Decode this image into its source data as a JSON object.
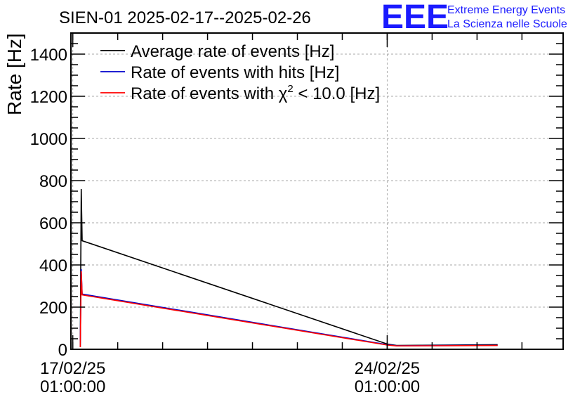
{
  "logo": {
    "mark": "EEE",
    "line1": "Extreme Energy Events",
    "line2": "La Scienza nelle Scuole",
    "color": "#1a1aff"
  },
  "chart_data": {
    "type": "line",
    "title": "SIEN-01 2025-02-17--2025-02-26",
    "xlabel": "",
    "ylabel": "Rate [Hz]",
    "ylim": [
      0,
      1500
    ],
    "yticks": [
      0,
      200,
      400,
      600,
      800,
      1000,
      1200,
      1400
    ],
    "xlim": [
      "2025-02-17 00:00:00",
      "2025-02-27 23:00:00"
    ],
    "xticks": [
      {
        "value": "2025-02-17 01:00:00",
        "line1": "17/02/25",
        "line2": "01:00:00"
      },
      {
        "value": "2025-02-24 01:00:00",
        "line1": "24/02/25",
        "line2": "01:00:00"
      }
    ],
    "grid": true,
    "legend_position": "top-left",
    "series": [
      {
        "name": "Average rate of events [Hz]",
        "legend_prefix": "Average rate of events [Hz]",
        "color": "#000000",
        "points": [
          [
            "2025-02-17 05:00:00",
            10
          ],
          [
            "2025-02-17 05:30:00",
            760
          ],
          [
            "2025-02-17 06:00:00",
            515
          ],
          [
            "2025-02-24 01:00:00",
            25
          ],
          [
            "2025-02-24 06:00:00",
            18
          ],
          [
            "2025-02-26 12:00:00",
            22
          ]
        ]
      },
      {
        "name": "Rate of events with hits [Hz]",
        "legend_prefix": "Rate of events with hits [Hz]",
        "color": "#0000cc",
        "points": [
          [
            "2025-02-17 05:00:00",
            10
          ],
          [
            "2025-02-17 05:30:00",
            380
          ],
          [
            "2025-02-17 06:00:00",
            262
          ],
          [
            "2025-02-24 01:00:00",
            22
          ],
          [
            "2025-02-24 06:00:00",
            17
          ],
          [
            "2025-02-26 12:00:00",
            19
          ]
        ]
      },
      {
        "name": "Rate of events with χ² < 10.0 [Hz]",
        "legend_prefix": "Rate of events with χ",
        "legend_sup": "2",
        "legend_suffix": " < 10.0 [Hz]",
        "color": "#ff0000",
        "points": [
          [
            "2025-02-17 05:00:00",
            10
          ],
          [
            "2025-02-17 05:30:00",
            370
          ],
          [
            "2025-02-17 06:00:00",
            258
          ],
          [
            "2025-02-24 01:00:00",
            20
          ],
          [
            "2025-02-24 06:00:00",
            16
          ],
          [
            "2025-02-26 12:00:00",
            18
          ]
        ]
      }
    ]
  }
}
